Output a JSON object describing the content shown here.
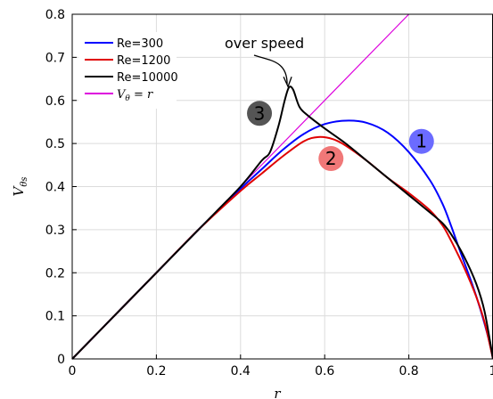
{
  "chart_data": {
    "type": "line",
    "xlabel": "r",
    "ylabel": "V",
    "ylabel_sub": "θs",
    "xlim": [
      0,
      1
    ],
    "ylim": [
      0,
      0.8
    ],
    "x_ticks": [
      0,
      0.2,
      0.4,
      0.6,
      0.8,
      1
    ],
    "x_tick_labels": [
      "0",
      "0.2",
      "0.4",
      "0.6",
      "0.8",
      "1"
    ],
    "y_ticks": [
      0,
      0.1,
      0.2,
      0.3,
      0.4,
      0.5,
      0.6,
      0.7,
      0.8
    ],
    "y_tick_labels": [
      "0",
      "0.1",
      "0.2",
      "0.3",
      "0.4",
      "0.5",
      "0.6",
      "0.7",
      "0.8"
    ],
    "grid": true,
    "legend_position": "top-left",
    "series": [
      {
        "name": "Re=300",
        "color": "#0000ff",
        "x": [
          0,
          0.1,
          0.2,
          0.3,
          0.4,
          0.45,
          0.5,
          0.55,
          0.6,
          0.65,
          0.7,
          0.75,
          0.8,
          0.85,
          0.88,
          0.9,
          0.92,
          0.95,
          0.97,
          0.99,
          1.0
        ],
        "y": [
          0,
          0.1,
          0.2,
          0.3,
          0.395,
          0.44,
          0.485,
          0.522,
          0.545,
          0.553,
          0.548,
          0.525,
          0.48,
          0.415,
          0.36,
          0.31,
          0.255,
          0.175,
          0.115,
          0.045,
          0
        ]
      },
      {
        "name": "Re=1200",
        "color": "#e00000",
        "x": [
          0,
          0.1,
          0.2,
          0.3,
          0.4,
          0.45,
          0.5,
          0.55,
          0.585,
          0.62,
          0.65,
          0.7,
          0.75,
          0.8,
          0.85,
          0.88,
          0.9,
          0.93,
          0.96,
          0.98,
          1.0
        ],
        "y": [
          0,
          0.1,
          0.2,
          0.3,
          0.39,
          0.43,
          0.47,
          0.505,
          0.515,
          0.51,
          0.495,
          0.46,
          0.42,
          0.385,
          0.345,
          0.31,
          0.275,
          0.215,
          0.145,
          0.085,
          0
        ]
      },
      {
        "name": "Re=10000",
        "color": "#000000",
        "x": [
          0,
          0.1,
          0.2,
          0.3,
          0.4,
          0.45,
          0.47,
          0.49,
          0.505,
          0.515,
          0.525,
          0.54,
          0.56,
          0.6,
          0.65,
          0.7,
          0.75,
          0.8,
          0.85,
          0.88,
          0.9,
          0.93,
          0.96,
          0.98,
          1.0
        ],
        "y": [
          0,
          0.1,
          0.2,
          0.3,
          0.4,
          0.46,
          0.48,
          0.54,
          0.6,
          0.63,
          0.625,
          0.585,
          0.565,
          0.535,
          0.5,
          0.46,
          0.42,
          0.38,
          0.34,
          0.315,
          0.29,
          0.24,
          0.175,
          0.11,
          0
        ]
      },
      {
        "name": "V_θ = r",
        "legend_math": true,
        "legend_main": "V",
        "legend_sub": "θ",
        "legend_rest": " = r",
        "color": "#dd00dd",
        "x": [
          0,
          0.8
        ],
        "y": [
          0,
          0.8
        ]
      }
    ],
    "annotations": [
      {
        "text": "over speed",
        "arrow_to": [
          0.515,
          0.63
        ]
      }
    ],
    "badges": [
      {
        "label": "1",
        "x": 0.83,
        "y": 0.505,
        "color": "#6b6bff"
      },
      {
        "label": "2",
        "x": 0.615,
        "y": 0.465,
        "color": "#f07878"
      },
      {
        "label": "3",
        "x": 0.445,
        "y": 0.57,
        "color": "#555555"
      }
    ]
  }
}
